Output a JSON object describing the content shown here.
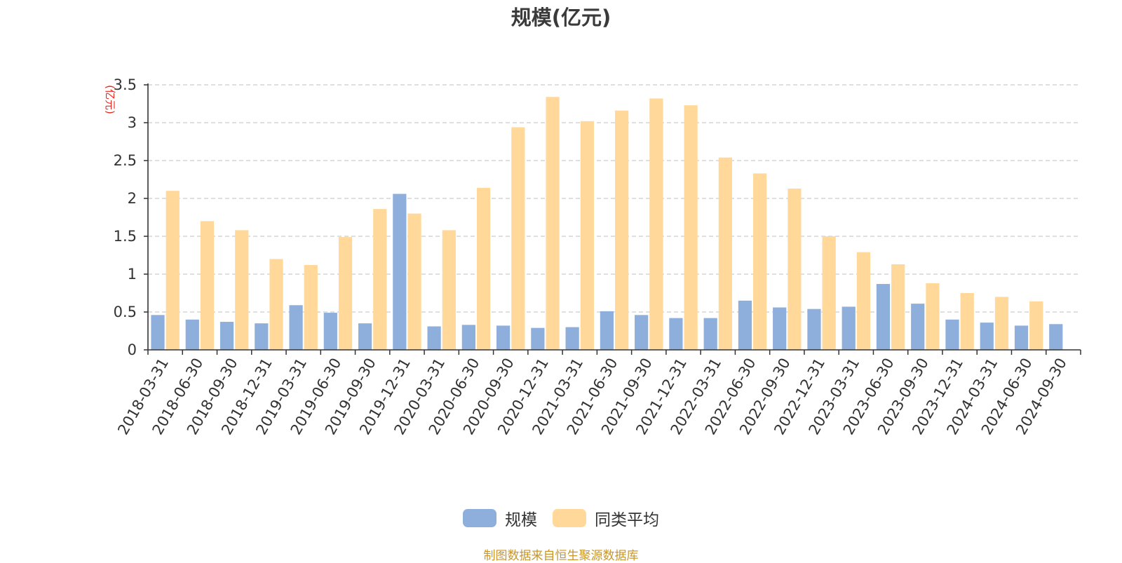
{
  "chart_data": {
    "type": "bar",
    "title": "规模(亿元)",
    "ylabel": "(亿元)",
    "xlabel": "",
    "ylim": [
      0,
      3.5
    ],
    "yticks": [
      0,
      0.5,
      1,
      1.5,
      2,
      2.5,
      3,
      3.5
    ],
    "grid": true,
    "legend_position": "bottom-center",
    "categories": [
      "2018-03-31",
      "2018-06-30",
      "2018-09-30",
      "2018-12-31",
      "2019-03-31",
      "2019-06-30",
      "2019-09-30",
      "2019-12-31",
      "2020-03-31",
      "2020-06-30",
      "2020-09-30",
      "2020-12-31",
      "2021-03-31",
      "2021-06-30",
      "2021-09-30",
      "2021-12-31",
      "2022-03-31",
      "2022-06-30",
      "2022-09-30",
      "2022-12-31",
      "2023-03-31",
      "2023-06-30",
      "2023-09-30",
      "2023-12-31",
      "2024-03-31",
      "2024-06-30",
      "2024-09-30"
    ],
    "series": [
      {
        "name": "规模",
        "color": "#8eaedb",
        "values": [
          0.46,
          0.4,
          0.37,
          0.35,
          0.59,
          0.49,
          0.35,
          2.06,
          0.31,
          0.33,
          0.32,
          0.29,
          0.3,
          0.51,
          0.46,
          0.42,
          0.42,
          0.65,
          0.56,
          0.54,
          0.57,
          0.87,
          0.61,
          0.4,
          0.36,
          0.32,
          0.34
        ]
      },
      {
        "name": "同类平均",
        "color": "#ffd89a",
        "values": [
          2.1,
          1.7,
          1.58,
          1.2,
          1.12,
          1.49,
          1.86,
          1.8,
          1.58,
          2.14,
          2.94,
          3.34,
          3.02,
          3.16,
          3.32,
          3.23,
          2.54,
          2.33,
          2.13,
          1.5,
          1.29,
          1.13,
          0.88,
          0.75,
          0.7,
          0.64,
          null
        ]
      }
    ]
  },
  "footer": {
    "source": "制图数据来自恒生聚源数据库"
  },
  "colors": {
    "axis": "#333333",
    "grid": "#cccccc",
    "ylabel": "#e8261c",
    "source": "#c8962a"
  }
}
